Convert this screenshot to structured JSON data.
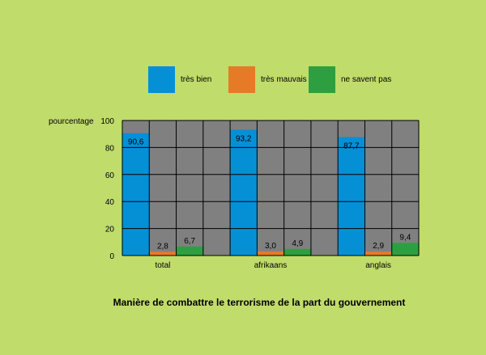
{
  "chart_data": {
    "type": "bar",
    "title": "Manière de combattre le terrorisme de la part du gouvernement",
    "ylabel": "pourcentage",
    "xlabel": "",
    "ylim": [
      0,
      100
    ],
    "yticks": [
      "0",
      "20",
      "40",
      "60",
      "80",
      "100"
    ],
    "categories": [
      "total",
      "afrikaans",
      "anglais"
    ],
    "series": [
      {
        "name": "très bien",
        "color": "#0590d6",
        "values": [
          90.6,
          93.2,
          87.7
        ],
        "labels": [
          "90,6",
          "93,2",
          "87,7"
        ]
      },
      {
        "name": "très mauvais",
        "color": "#e77a27",
        "values": [
          2.8,
          3.0,
          2.9
        ],
        "labels": [
          "2,8",
          "3,0",
          "2,9"
        ]
      },
      {
        "name": "ne savent pas",
        "color": "#2e9f41",
        "values": [
          6.7,
          4.9,
          9.4
        ],
        "labels": [
          "6,7",
          "4,9",
          "9,4"
        ]
      }
    ],
    "grid": true,
    "legend_position": "top",
    "plot_background": "#808080"
  }
}
